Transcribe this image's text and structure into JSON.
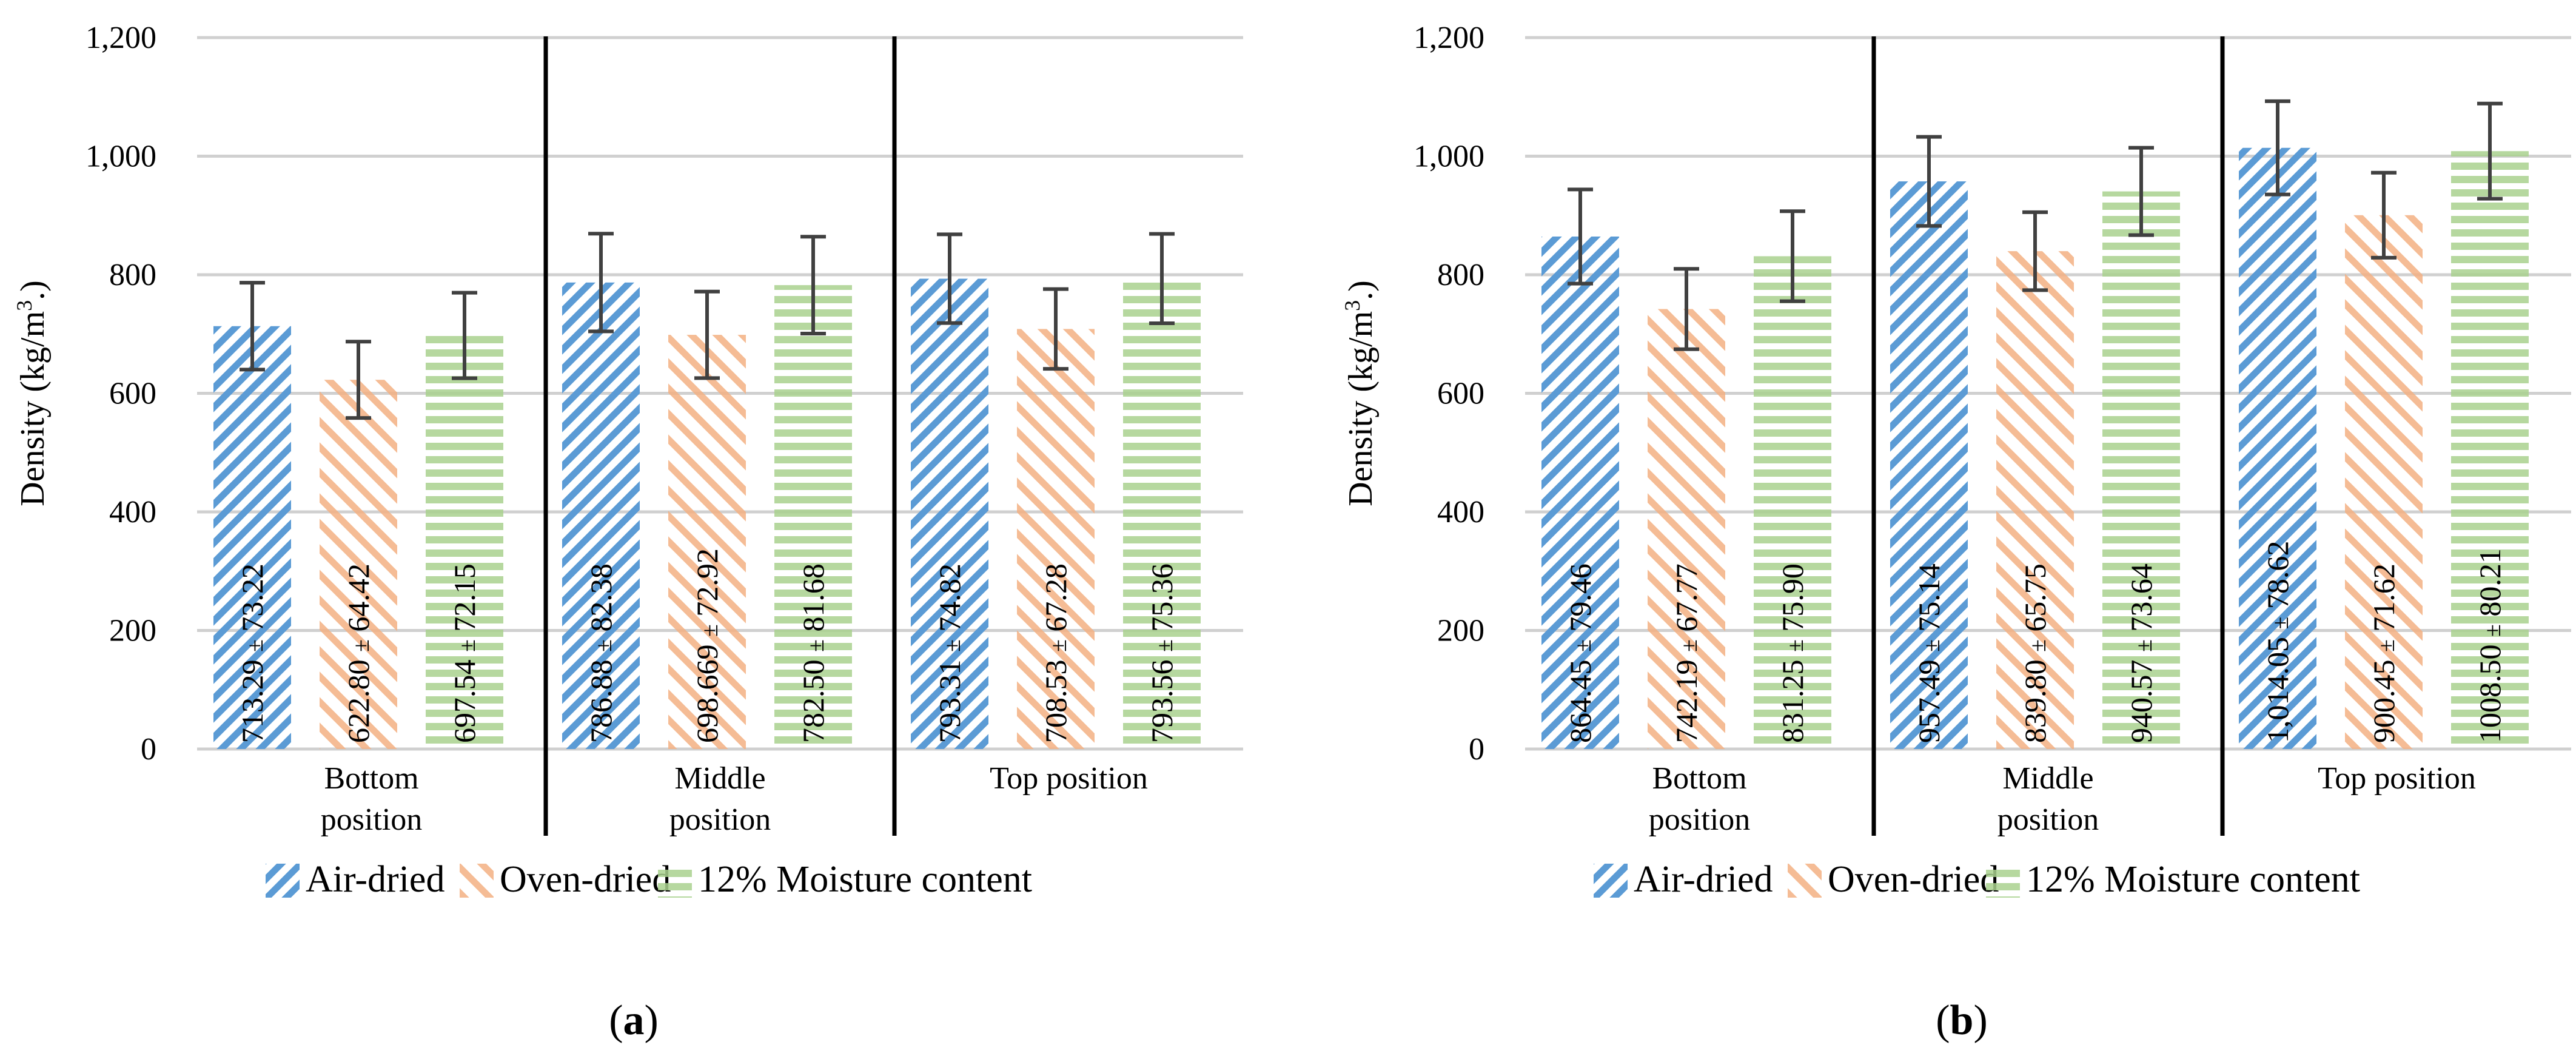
{
  "colors": {
    "air_dried": "#5B9BD5",
    "oven_dried": "#F4B183",
    "moisture_12": "#A9D18E",
    "grid": "#d0d0d0",
    "error_bar": "#404040",
    "separator": "#000000",
    "text": "#000000"
  },
  "chart_data": [
    {
      "type": "bar",
      "panel_label": "a",
      "ylabel": "Density  (kg/m",
      "ylabel_sup": "3",
      "ylabel_end": ".)",
      "xlabel": "",
      "ylim": [
        0,
        1200
      ],
      "yticks": [
        0,
        200,
        400,
        600,
        800,
        1000,
        1200
      ],
      "ytick_labels": [
        "0",
        "200",
        "400",
        "600",
        "800",
        "1,000",
        "1,200"
      ],
      "grid": true,
      "legend_position": "bottom-center",
      "categories": [
        {
          "lines": [
            "Bottom",
            "position"
          ]
        },
        {
          "lines": [
            "Middle",
            "position"
          ]
        },
        {
          "lines": [
            "Top position"
          ]
        }
      ],
      "series": [
        {
          "name": "Air-dried",
          "pattern": "diag-up",
          "values": [
            713.29,
            786.88,
            793.31
          ],
          "errors": [
            73.22,
            82.38,
            74.82
          ],
          "labels": [
            [
              "713.29",
              "73.22"
            ],
            [
              "786.88",
              "82.38"
            ],
            [
              "793.31",
              "74.82"
            ]
          ]
        },
        {
          "name": "Oven-dried",
          "pattern": "diag-down",
          "values": [
            622.8,
            698.669,
            708.53
          ],
          "errors": [
            64.42,
            72.92,
            67.28
          ],
          "labels": [
            [
              "622.80",
              "64.42"
            ],
            [
              "698.669",
              "72.92"
            ],
            [
              "708.53",
              "67.28"
            ]
          ]
        },
        {
          "name": "12% Moisture content",
          "pattern": "horizontal",
          "values": [
            697.54,
            782.5,
            793.56
          ],
          "errors": [
            72.15,
            81.68,
            75.36
          ],
          "labels": [
            [
              "697.54",
              "72.15"
            ],
            [
              "782.50",
              "81.68"
            ],
            [
              "793.56",
              "75.36"
            ]
          ]
        }
      ]
    },
    {
      "type": "bar",
      "panel_label": "b",
      "ylabel": "Density  (kg/m",
      "ylabel_sup": "3",
      "ylabel_end": ".)",
      "xlabel": "",
      "ylim": [
        0,
        1200
      ],
      "yticks": [
        0,
        200,
        400,
        600,
        800,
        1000,
        1200
      ],
      "ytick_labels": [
        "0",
        "200",
        "400",
        "600",
        "800",
        "1,000",
        "1,200"
      ],
      "grid": true,
      "legend_position": "bottom-center",
      "categories": [
        {
          "lines": [
            "Bottom",
            "position"
          ]
        },
        {
          "lines": [
            "Middle",
            "position"
          ]
        },
        {
          "lines": [
            "Top position"
          ]
        }
      ],
      "series": [
        {
          "name": "Air-dried",
          "pattern": "diag-up",
          "values": [
            864.45,
            957.49,
            1014.05
          ],
          "errors": [
            79.46,
            75.14,
            78.62
          ],
          "labels": [
            [
              "864.45",
              "79.46"
            ],
            [
              "957.49",
              "75.14"
            ],
            [
              "1,014.05",
              "78.62"
            ]
          ]
        },
        {
          "name": "Oven-dried",
          "pattern": "diag-down",
          "values": [
            742.19,
            839.8,
            900.45
          ],
          "errors": [
            67.77,
            65.75,
            71.62
          ],
          "labels": [
            [
              "742.19",
              "67.77"
            ],
            [
              "839.80",
              "65.75"
            ],
            [
              "900.45",
              "71.62"
            ]
          ]
        },
        {
          "name": "12% Moisture content",
          "pattern": "horizontal",
          "values": [
            831.25,
            940.57,
            1008.5
          ],
          "errors": [
            75.9,
            73.64,
            80.21
          ],
          "labels": [
            [
              "831.25",
              "75.90"
            ],
            [
              "940.57",
              "73.64"
            ],
            [
              "1008.50",
              "80.21"
            ]
          ]
        }
      ]
    }
  ]
}
